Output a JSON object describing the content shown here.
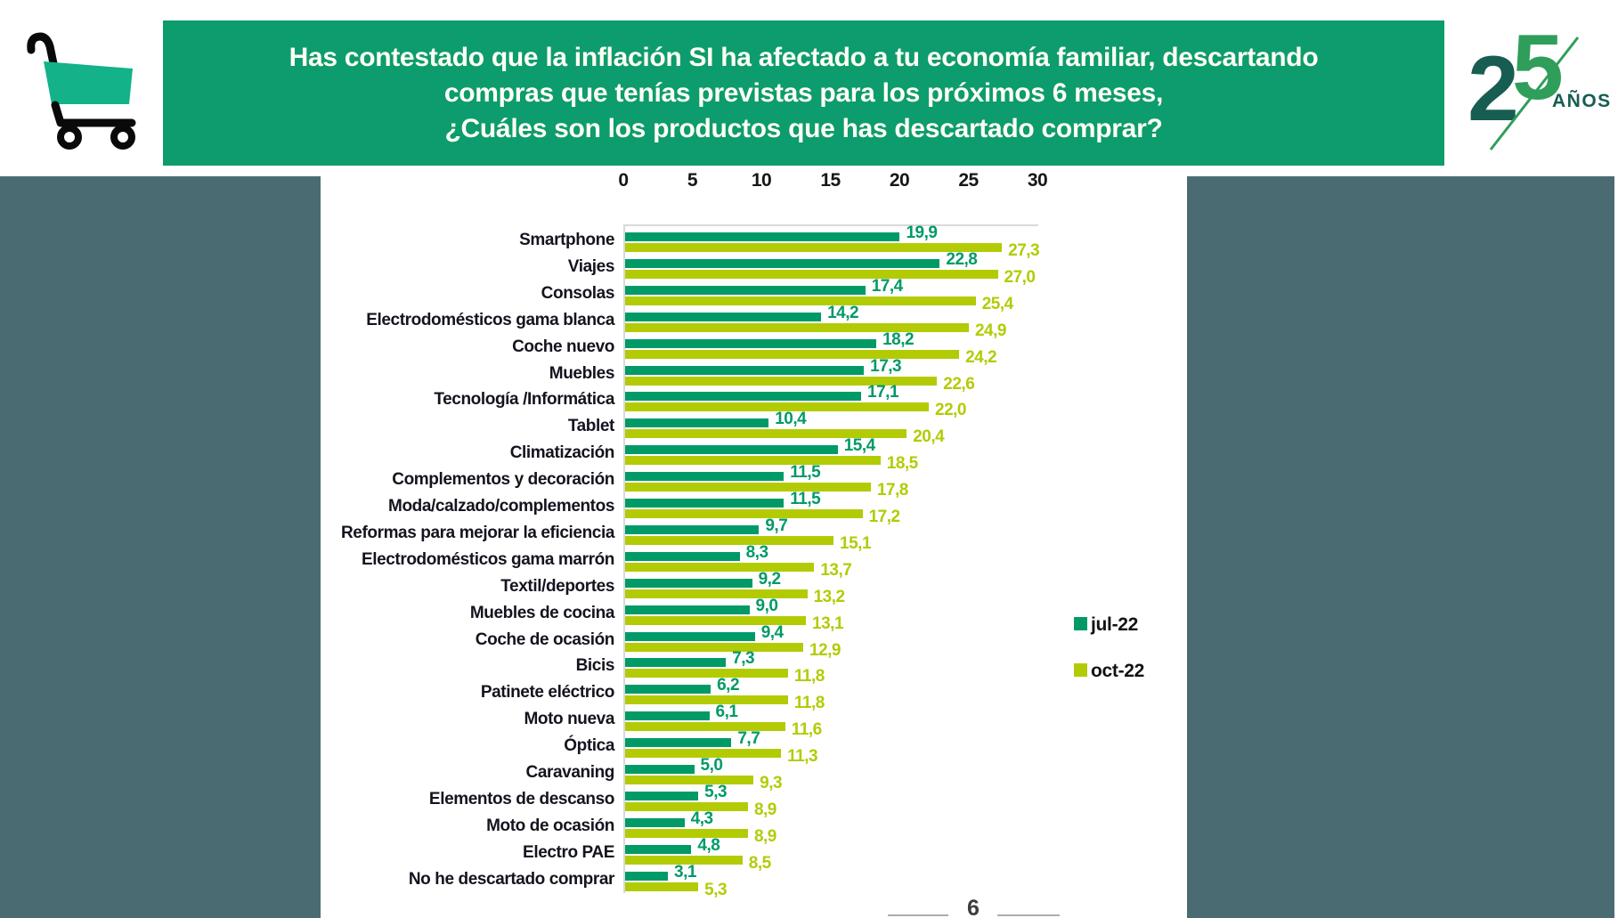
{
  "header": {
    "title_lines": [
      "Has contestado que la inflación SI ha afectado a tu economía familiar, descartando",
      "compras que tenías previstas para los próximos 6 meses,",
      "¿Cuáles son los productos que has descartado comprar?"
    ],
    "banner_color": "#0D9C6D",
    "logo": {
      "digit_2": "2",
      "digit_5": "5",
      "text": "AÑOS"
    }
  },
  "footer": {
    "page_number": "6"
  },
  "colors": {
    "jul22": "#009A67",
    "oct22": "#B3CB05",
    "banner_green": "#0D9C6D",
    "side_panel_slate": "#4B6B73",
    "cart_green": "#13B288",
    "logo_teal": "#175D52",
    "logo_green": "#2F9E5A",
    "axis_gray": "#D9D9D9"
  },
  "chart_data": {
    "type": "bar",
    "orientation": "horizontal",
    "title": "",
    "xlabel": "",
    "ylabel": "",
    "x_axis": {
      "min": 0,
      "max": 30,
      "ticks": [
        0,
        5,
        10,
        15,
        20,
        25,
        30
      ],
      "position": "top"
    },
    "grid": false,
    "legend_position": "right",
    "legend": [
      {
        "name": "jul-22",
        "color": "#009A67"
      },
      {
        "name": "oct-22",
        "color": "#B3CB05"
      }
    ],
    "categories": [
      "Smartphone",
      "Viajes",
      "Consolas",
      "Electrodomésticos gama blanca",
      "Coche nuevo",
      "Muebles",
      "Tecnología /Informática",
      "Tablet",
      "Climatización",
      "Complementos y decoración",
      "Moda/calzado/complementos",
      "Reformas para mejorar la eficiencia",
      "Electrodomésticos gama marrón",
      "Textil/deportes",
      "Muebles de cocina",
      "Coche de ocasión",
      "Bicis",
      "Patinete eléctrico",
      "Moto nueva",
      "Óptica",
      "Caravaning",
      "Elementos de descanso",
      "Moto de ocasión",
      "Electro PAE",
      "No he descartado comprar"
    ],
    "series": [
      {
        "name": "jul-22",
        "color": "#009A67",
        "values": [
          19.9,
          22.8,
          17.4,
          14.2,
          18.2,
          17.3,
          17.1,
          10.4,
          15.4,
          11.5,
          11.5,
          9.7,
          8.3,
          9.2,
          9.0,
          9.4,
          7.3,
          6.2,
          6.1,
          7.7,
          5.0,
          5.3,
          4.3,
          4.8,
          3.1
        ],
        "labels": [
          "19,9",
          "22,8",
          "17,4",
          "14,2",
          "18,2",
          "17,3",
          "17,1",
          "10,4",
          "15,4",
          "11,5",
          "11,5",
          "9,7",
          "8,3",
          "9,2",
          "9,0",
          "9,4",
          "7,3",
          "6,2",
          "6,1",
          "7,7",
          "5,0",
          "5,3",
          "4,3",
          "4,8",
          "3,1"
        ]
      },
      {
        "name": "oct-22",
        "color": "#B3CB05",
        "values": [
          27.3,
          27.0,
          25.4,
          24.9,
          24.2,
          22.6,
          22.0,
          20.4,
          18.5,
          17.8,
          17.2,
          15.1,
          13.7,
          13.2,
          13.1,
          12.9,
          11.8,
          11.8,
          11.6,
          11.3,
          9.3,
          8.9,
          8.9,
          8.5,
          5.3
        ],
        "labels": [
          "27,3",
          "27,0",
          "25,4",
          "24,9",
          "24,2",
          "22,6",
          "22,0",
          "20,4",
          "18,5",
          "17,8",
          "17,2",
          "15,1",
          "13,7",
          "13,2",
          "13,1",
          "12,9",
          "11,8",
          "11,8",
          "11,6",
          "11,3",
          "9,3",
          "8,9",
          "8,9",
          "8,5",
          "5,3"
        ]
      }
    ]
  }
}
